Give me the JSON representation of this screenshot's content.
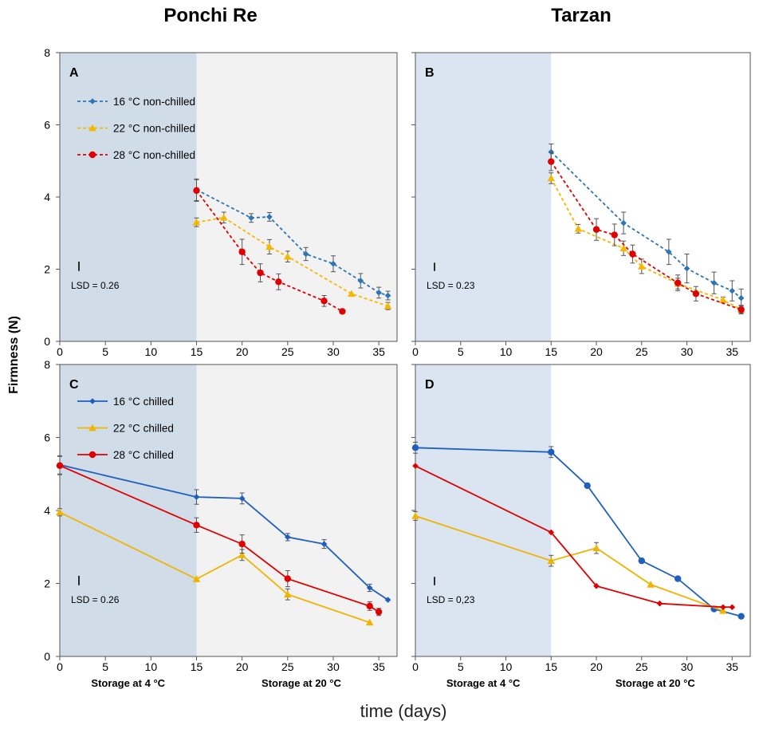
{
  "figure": {
    "column_titles": [
      "Ponchi Re",
      "Tarzan"
    ],
    "y_axis_label": "Firmness (N)",
    "x_axis_label": "time (days)"
  },
  "chart_data": [
    {
      "panel": "A",
      "type": "line",
      "cultivar": "Ponchi Re",
      "xlim": [
        0,
        37
      ],
      "ylim": [
        0,
        8
      ],
      "xticks": [
        "0",
        "5",
        "10",
        "15",
        "20",
        "25",
        "30",
        "35"
      ],
      "yticks": [
        "0",
        "2",
        "4",
        "6",
        "8"
      ],
      "storage_labels": [
        "",
        ""
      ],
      "lsd_label": "LSD = 0.26",
      "lsd_value": 0.26,
      "cold_storage_days": [
        0,
        15
      ],
      "cold_color": "#d1dce9",
      "warm_color": "#f2f2f2",
      "series": [
        {
          "name": "16 °C non-chilled",
          "color": "#2e75b6",
          "dash": true,
          "marker": "diamond",
          "x": [
            15,
            21,
            23,
            27,
            30,
            33,
            35,
            36
          ],
          "y": [
            4.2,
            3.42,
            3.45,
            2.42,
            2.15,
            1.68,
            1.35,
            1.27
          ],
          "err": [
            0.3,
            0.12,
            0.12,
            0.18,
            0.22,
            0.2,
            0.15,
            0.12
          ]
        },
        {
          "name": "22 °C non-chilled",
          "color": "#f5b800",
          "dash": true,
          "marker": "triangle",
          "x": [
            15,
            18,
            23,
            25,
            32,
            36
          ],
          "y": [
            3.3,
            3.43,
            2.62,
            2.35,
            1.32,
            0.98
          ],
          "err": [
            0.12,
            0.15,
            0.2,
            0.15,
            0.0,
            0.1
          ]
        },
        {
          "name": "28 °C non-chilled",
          "color": "#e00000",
          "dash": true,
          "marker": "circle",
          "x": [
            15,
            20,
            22,
            24,
            29,
            31
          ],
          "y": [
            4.18,
            2.48,
            1.9,
            1.65,
            1.12,
            0.83
          ],
          "err": [
            0.3,
            0.35,
            0.25,
            0.22,
            0.15,
            0.0
          ]
        }
      ]
    },
    {
      "panel": "B",
      "type": "line",
      "cultivar": "Tarzan",
      "xlim": [
        0,
        37
      ],
      "ylim": [
        0,
        8
      ],
      "xticks": [
        "0",
        "5",
        "10",
        "15",
        "20",
        "25",
        "30",
        "35"
      ],
      "yticks": [
        "",
        "",
        "",
        "",
        ""
      ],
      "storage_labels": [
        "",
        ""
      ],
      "lsd_label": "LSD = 0.23",
      "lsd_value": 0.23,
      "cold_storage_days": [
        0,
        15
      ],
      "cold_color": "#dae5f1",
      "warm_color": "#ffffff",
      "series": [
        {
          "name": "16 °C non-chilled",
          "color": "#2e75b6",
          "dash": true,
          "marker": "diamond",
          "x": [
            15,
            23,
            28,
            30,
            33,
            35,
            36
          ],
          "y": [
            5.25,
            3.28,
            2.48,
            2.02,
            1.62,
            1.4,
            1.2
          ],
          "err": [
            0.22,
            0.3,
            0.35,
            0.4,
            0.3,
            0.28,
            0.25
          ]
        },
        {
          "name": "22 °C non-chilled",
          "color": "#f5b800",
          "dash": true,
          "marker": "triangle",
          "x": [
            15,
            18,
            23,
            25,
            29,
            34,
            36
          ],
          "y": [
            4.52,
            3.12,
            2.58,
            2.08,
            1.6,
            1.15,
            0.88
          ],
          "err": [
            0.15,
            0.12,
            0.2,
            0.2,
            0.15,
            0.08,
            0.1
          ]
        },
        {
          "name": "28 °C non-chilled",
          "color": "#e00000",
          "dash": true,
          "marker": "circle",
          "x": [
            15,
            20,
            22,
            24,
            29,
            31,
            36
          ],
          "y": [
            4.98,
            3.1,
            2.95,
            2.42,
            1.62,
            1.32,
            0.88
          ],
          "err": [
            0.25,
            0.3,
            0.3,
            0.25,
            0.22,
            0.2,
            0.12
          ]
        }
      ]
    },
    {
      "panel": "C",
      "type": "line",
      "cultivar": "Ponchi Re",
      "xlim": [
        0,
        37
      ],
      "ylim": [
        0,
        8
      ],
      "xticks": [
        "0",
        "5",
        "10",
        "15",
        "20",
        "25",
        "30",
        "35"
      ],
      "yticks": [
        "0",
        "2",
        "4",
        "6",
        "8"
      ],
      "storage_labels": [
        "Storage  at 4 °C",
        "Storage at 20 °C"
      ],
      "lsd_label": "LSD = 0.26",
      "lsd_value": 0.26,
      "cold_storage_days": [
        0,
        15
      ],
      "cold_color": "#d1dce9",
      "warm_color": "#f2f2f2",
      "series": [
        {
          "name": "16 °C chilled",
          "color": "#1f5fbf",
          "dash": false,
          "marker": "diamond",
          "x": [
            0,
            15,
            20,
            25,
            29,
            34,
            36
          ],
          "y": [
            5.25,
            4.37,
            4.33,
            3.27,
            3.08,
            1.88,
            1.55
          ],
          "err": [
            0.25,
            0.2,
            0.15,
            0.1,
            0.12,
            0.1,
            0.0
          ]
        },
        {
          "name": "22 °C chilled",
          "color": "#f0b400",
          "dash": false,
          "marker": "triangle",
          "x": [
            0,
            15,
            20,
            25,
            34
          ],
          "y": [
            3.95,
            2.12,
            2.78,
            1.7,
            0.93
          ],
          "err": [
            0.1,
            0.0,
            0.15,
            0.15,
            0.0
          ]
        },
        {
          "name": "28 °C chilled",
          "color": "#e00000",
          "dash": false,
          "marker": "circle",
          "x": [
            0,
            15,
            20,
            25,
            34,
            35
          ],
          "y": [
            5.23,
            3.6,
            3.08,
            2.13,
            1.38,
            1.22
          ],
          "err": [
            0.25,
            0.2,
            0.25,
            0.22,
            0.12,
            0.1
          ]
        }
      ]
    },
    {
      "panel": "D",
      "type": "line",
      "cultivar": "Tarzan",
      "xlim": [
        0,
        37
      ],
      "ylim": [
        0,
        8
      ],
      "xticks": [
        "0",
        "5",
        "10",
        "15",
        "20",
        "25",
        "30",
        "35"
      ],
      "yticks": [
        "",
        "",
        "",
        "",
        ""
      ],
      "storage_labels": [
        "Storage at 4 °C",
        "Storage at 20 °C"
      ],
      "lsd_label": "LSD = 0,23",
      "lsd_value": 0.23,
      "cold_storage_days": [
        0,
        15
      ],
      "cold_color": "#dae5f1",
      "warm_color": "#ffffff",
      "series": [
        {
          "name": "16 °C chilled",
          "color": "#1f5fbf",
          "dash": false,
          "marker": "circle",
          "x": [
            0,
            15,
            19,
            25,
            29,
            33,
            36
          ],
          "y": [
            5.72,
            5.6,
            4.68,
            2.62,
            2.13,
            1.3,
            1.1
          ],
          "err": [
            0.15,
            0.15,
            0.0,
            0.0,
            0.0,
            0.0,
            0.0
          ]
        },
        {
          "name": "22 °C chilled",
          "color": "#f0b400",
          "dash": false,
          "marker": "triangle",
          "x": [
            0,
            15,
            20,
            26,
            34
          ],
          "y": [
            3.85,
            2.62,
            2.97,
            1.97,
            1.25
          ],
          "err": [
            0.12,
            0.15,
            0.15,
            0.0,
            0.0
          ]
        },
        {
          "name": "28 °C chilled",
          "color": "#e00000",
          "dash": false,
          "marker": "diamond",
          "x": [
            0,
            15,
            20,
            27,
            34,
            35
          ],
          "y": [
            5.22,
            3.4,
            1.93,
            1.45,
            1.35,
            1.35
          ],
          "err": [
            0.0,
            0.0,
            0.0,
            0.0,
            0.0,
            0.0
          ]
        }
      ]
    }
  ],
  "legends": {
    "A": [
      "16 °C non-chilled",
      "22 °C non-chilled",
      "28 °C non-chilled"
    ],
    "C": [
      "16 °C chilled",
      "22 °C chilled",
      "28 °C chilled"
    ]
  }
}
